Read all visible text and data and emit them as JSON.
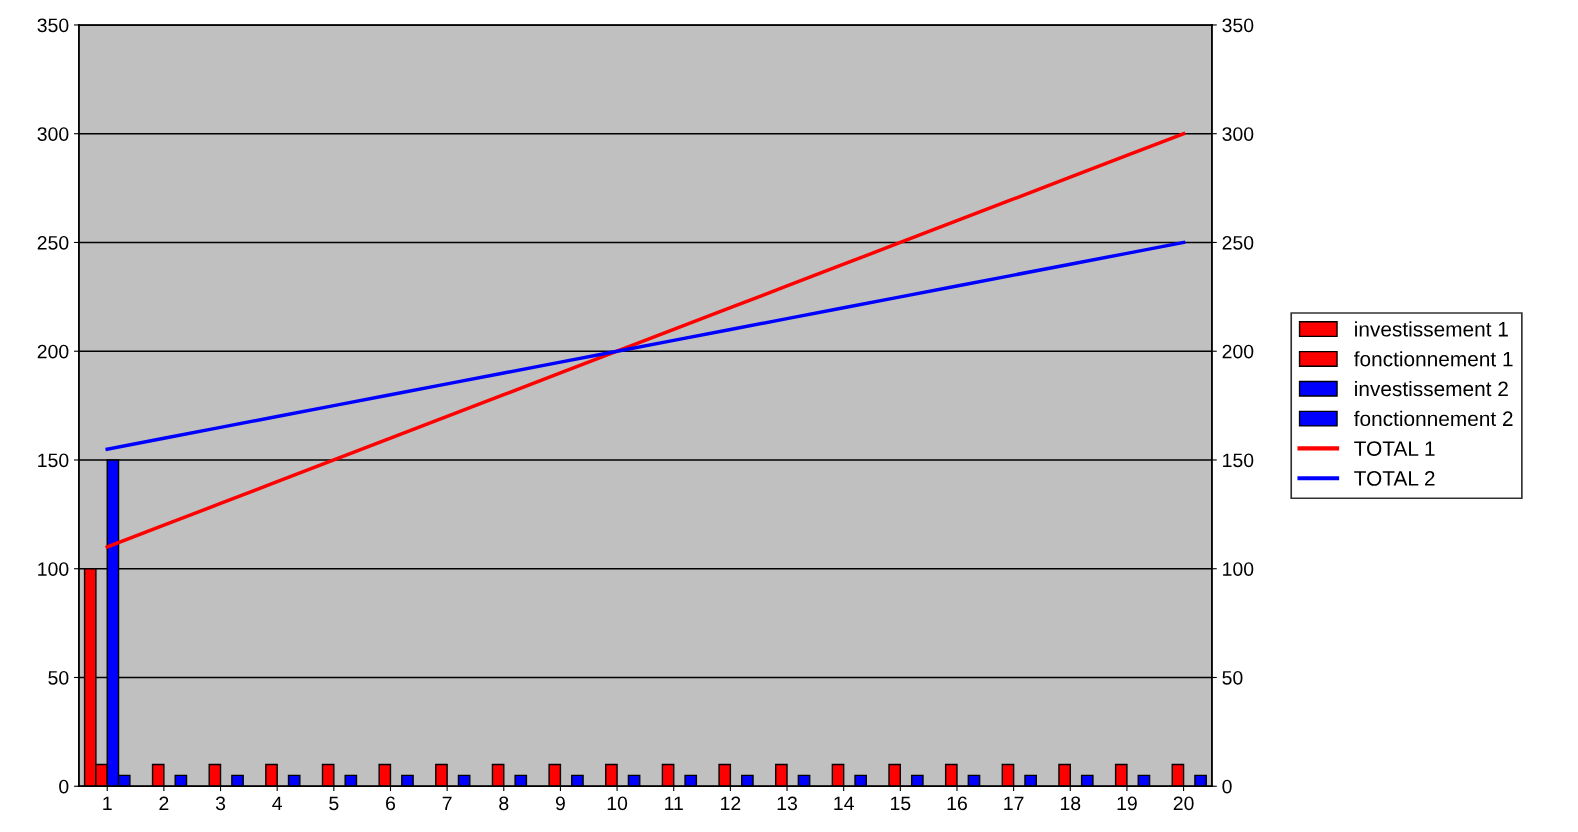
{
  "chart_data": {
    "type": "bar",
    "categories": [
      "1",
      "2",
      "3",
      "4",
      "5",
      "6",
      "7",
      "8",
      "9",
      "10",
      "11",
      "12",
      "13",
      "14",
      "15",
      "16",
      "17",
      "18",
      "19",
      "20"
    ],
    "series": [
      {
        "name": "investissement 1",
        "color": "#ff0000",
        "values": [
          100,
          null,
          null,
          null,
          null,
          null,
          null,
          null,
          null,
          null,
          null,
          null,
          null,
          null,
          null,
          null,
          null,
          null,
          null,
          null
        ]
      },
      {
        "name": "fonctionnement 1",
        "color": "#ff0000",
        "values": [
          10,
          10,
          10,
          10,
          10,
          10,
          10,
          10,
          10,
          10,
          10,
          10,
          10,
          10,
          10,
          10,
          10,
          10,
          10,
          10
        ]
      },
      {
        "name": "investissement 2",
        "color": "#0000ff",
        "values": [
          150,
          null,
          null,
          null,
          null,
          null,
          null,
          null,
          null,
          null,
          null,
          null,
          null,
          null,
          null,
          null,
          null,
          null,
          null,
          null
        ]
      },
      {
        "name": "fonctionnement 2",
        "color": "#0000ff",
        "values": [
          5,
          5,
          5,
          5,
          5,
          5,
          5,
          5,
          5,
          5,
          5,
          5,
          5,
          5,
          5,
          5,
          5,
          5,
          5,
          5
        ]
      },
      {
        "name": "TOTAL 1",
        "type": "line",
        "color": "#ff0000",
        "values": [
          110,
          120,
          130,
          140,
          150,
          160,
          170,
          180,
          190,
          200,
          210,
          220,
          230,
          240,
          250,
          260,
          270,
          280,
          290,
          300
        ]
      },
      {
        "name": "TOTAL 2",
        "type": "line",
        "color": "#0000ff",
        "values": [
          155,
          160,
          165,
          170,
          175,
          180,
          185,
          190,
          195,
          200,
          205,
          210,
          215,
          220,
          225,
          230,
          235,
          240,
          245,
          250
        ]
      }
    ],
    "ylim": [
      0,
      350
    ],
    "yticks": [
      0,
      50,
      100,
      150,
      200,
      250,
      300,
      350
    ],
    "y2lim": [
      0,
      350
    ],
    "y2ticks": [
      0,
      50,
      100,
      150,
      200,
      250,
      300,
      350
    ],
    "grid": "y",
    "legend": "right",
    "marker": "none",
    "line_style": "solid"
  }
}
